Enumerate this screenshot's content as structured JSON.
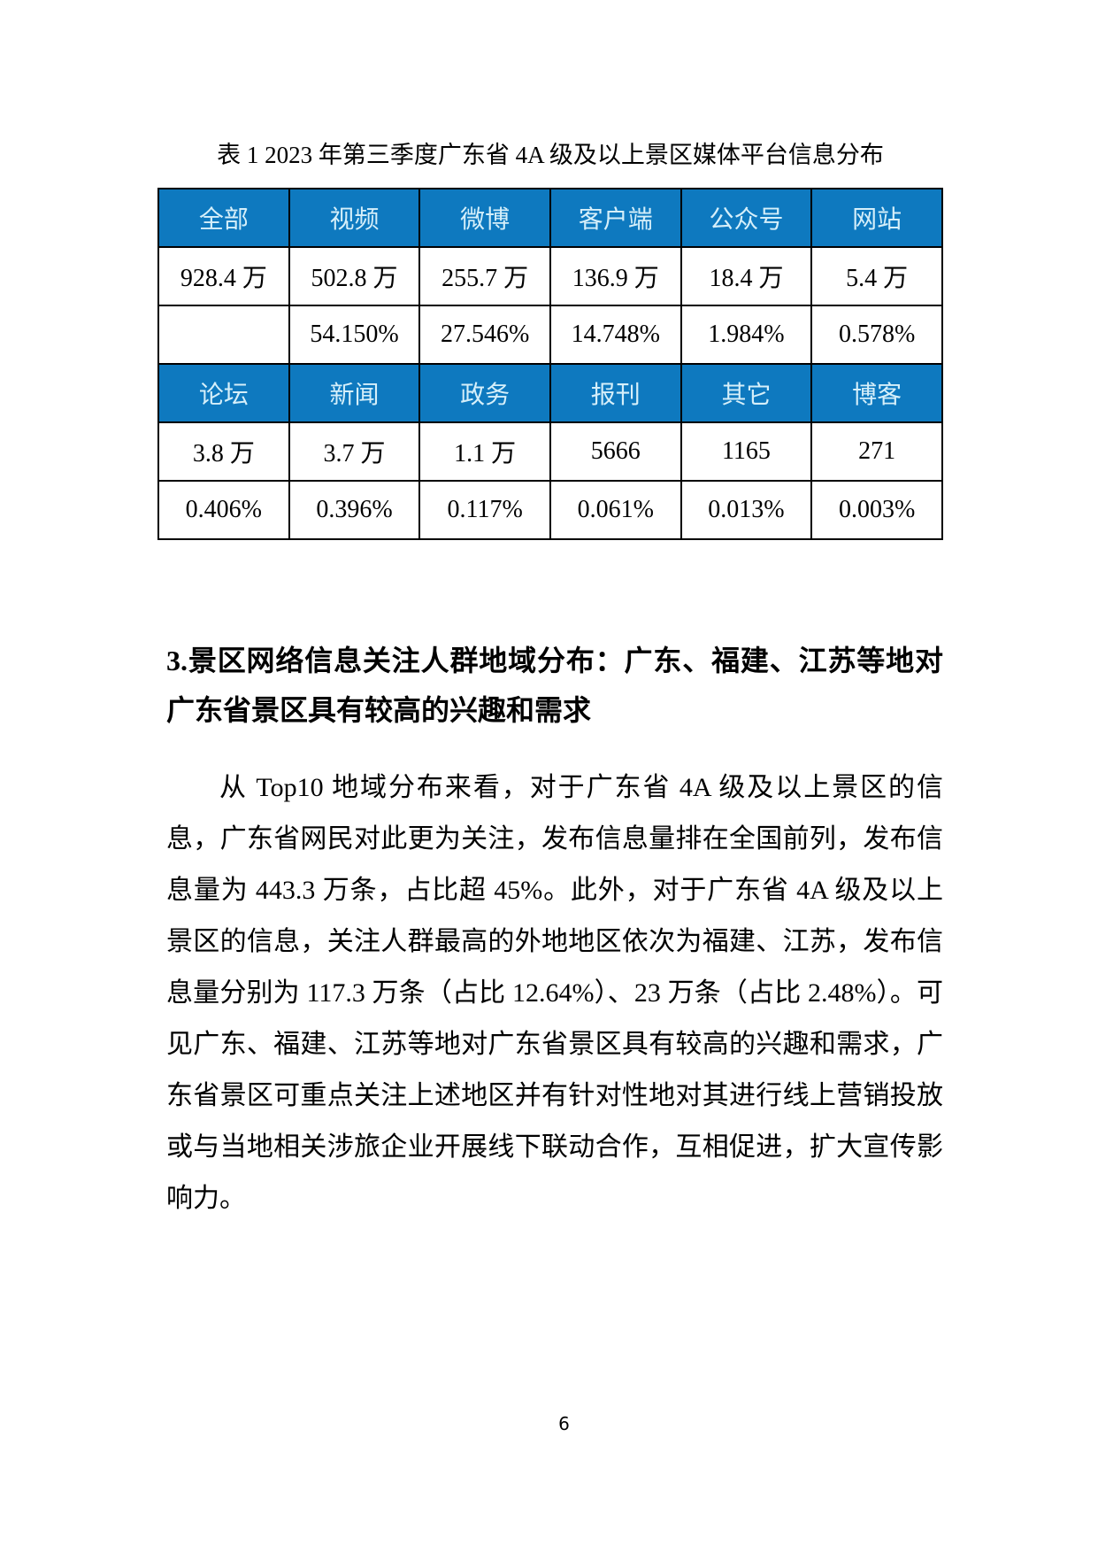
{
  "colors": {
    "header_bg": "#0E79BF",
    "header_text": "#D5EFFA",
    "border_color": "#000000"
  },
  "table": {
    "caption": "表 1 2023 年第三季度广东省 4A 级及以上景区媒体平台信息分布",
    "rows": [
      {
        "type": "header",
        "cells": [
          "全部",
          "视频",
          "微博",
          "客户端",
          "公众号",
          "网站"
        ]
      },
      {
        "type": "data",
        "cells": [
          "928.4 万",
          "502.8 万",
          "255.7 万",
          "136.9 万",
          "18.4 万",
          "5.4 万"
        ]
      },
      {
        "type": "data",
        "cells": [
          "",
          "54.150%",
          "27.546%",
          "14.748%",
          "1.984%",
          "0.578%"
        ]
      },
      {
        "type": "header",
        "cells": [
          "论坛",
          "新闻",
          "政务",
          "报刊",
          "其它",
          "博客"
        ]
      },
      {
        "type": "data",
        "cells": [
          "3.8 万",
          "3.7 万",
          "1.1 万",
          "5666",
          "1165",
          "271"
        ]
      },
      {
        "type": "data",
        "cells": [
          "0.406%",
          "0.396%",
          "0.117%",
          "0.061%",
          "0.013%",
          "0.003%"
        ]
      }
    ]
  },
  "section": {
    "heading": "3.景区网络信息关注人群地域分布：广东、福建、江苏等地对广东省景区具有较高的兴趣和需求",
    "paragraph": "从 Top10 地域分布来看，对于广东省 4A 级及以上景区的信息，广东省网民对此更为关注，发布信息量排在全国前列，发布信息量为 443.3 万条，占比超 45%。此外，对于广东省 4A 级及以上景区的信息，关注人群最高的外地地区依次为福建、江苏，发布信息量分别为 117.3 万条（占比 12.64%）、23 万条（占比 2.48%）。可见广东、福建、江苏等地对广东省景区具有较高的兴趣和需求，广东省景区可重点关注上述地区并有针对性地对其进行线上营销投放或与当地相关涉旅企业开展线下联动合作，互相促进，扩大宣传影响力。"
  },
  "page": {
    "number": "6"
  }
}
